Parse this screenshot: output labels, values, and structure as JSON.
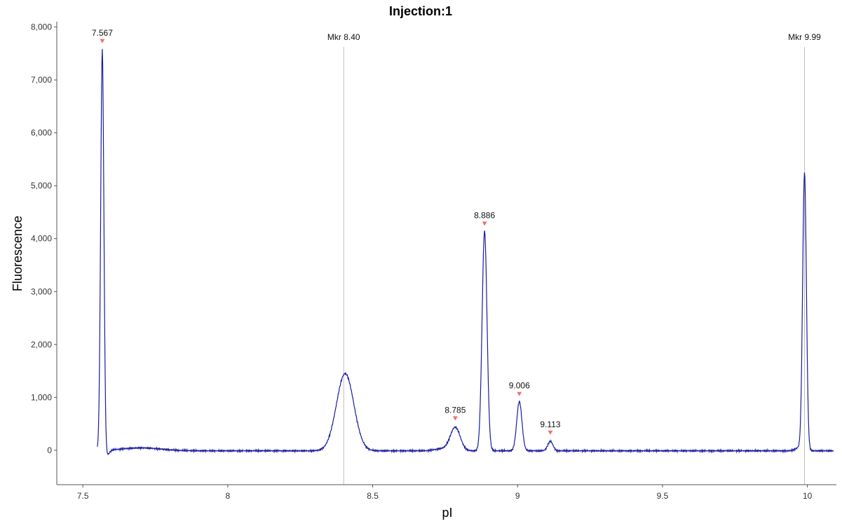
{
  "chart_data": {
    "type": "line",
    "title": "Injection:1",
    "xlabel": "pI",
    "ylabel": "Fluorescence",
    "xlim": [
      7.41,
      10.1
    ],
    "ylim": [
      -650,
      8100
    ],
    "x_ticks": [
      7.5,
      8,
      8.5,
      9,
      9.5,
      10
    ],
    "x_tick_labels": [
      "7.5",
      "8",
      "8.5",
      "9",
      "9.5",
      "10"
    ],
    "y_ticks": [
      0,
      1000,
      2000,
      3000,
      4000,
      5000,
      6000,
      7000,
      8000
    ],
    "y_tick_labels": [
      "0",
      "1,000",
      "2,000",
      "3,000",
      "4,000",
      "5,000",
      "6,000",
      "7,000",
      "8,000"
    ],
    "grid": false,
    "colors": {
      "trace": "#1a1aa0",
      "marker_line": "#bdbdbd",
      "peak_marker": "#f07070"
    },
    "trace": {
      "x_start": 7.55,
      "x_end": 10.09,
      "baseline": -10,
      "peaks": [
        {
          "center": 7.567,
          "height": 7600,
          "width": 0.0055
        },
        {
          "center": 7.581,
          "height": -110,
          "width": 0.009
        },
        {
          "center": 7.7,
          "height": 55,
          "width": 0.07
        },
        {
          "center": 8.405,
          "height": 1460,
          "width": 0.03
        },
        {
          "center": 8.74,
          "height": 40,
          "width": 0.025
        },
        {
          "center": 8.785,
          "height": 440,
          "width": 0.017
        },
        {
          "center": 8.886,
          "height": 4150,
          "width": 0.0085
        },
        {
          "center": 9.006,
          "height": 930,
          "width": 0.009
        },
        {
          "center": 9.113,
          "height": 180,
          "width": 0.009
        },
        {
          "center": 9.97,
          "height": 60,
          "width": 0.012
        },
        {
          "center": 9.99,
          "height": 5250,
          "width": 0.0065
        }
      ]
    },
    "peak_labels": [
      {
        "label": "7.567",
        "x": 7.567,
        "y": 7600
      },
      {
        "label": "8.785",
        "x": 8.785,
        "y": 470
      },
      {
        "label": "8.886",
        "x": 8.886,
        "y": 4150
      },
      {
        "label": "9.006",
        "x": 9.006,
        "y": 930
      },
      {
        "label": "9.113",
        "x": 9.113,
        "y": 200
      }
    ],
    "markers": [
      {
        "label": "Mkr 8.40",
        "x": 8.4
      },
      {
        "label": "Mkr 9.99",
        "x": 9.99
      }
    ]
  }
}
